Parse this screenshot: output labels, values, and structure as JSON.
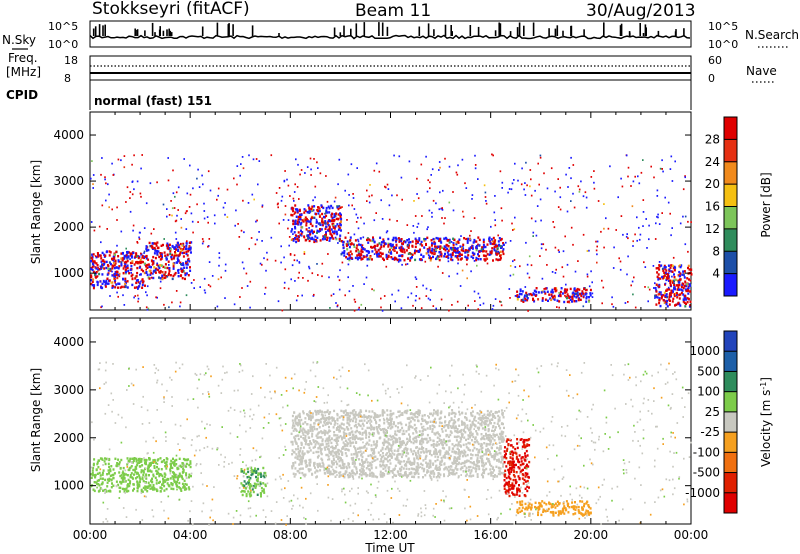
{
  "header": {
    "station": "Stokkseyri (fitACF)",
    "beam": "Beam 11",
    "date": "30/Aug/2013"
  },
  "noise_panel": {
    "left_label": "N.Sky",
    "left_ticks": [
      "10^5",
      "10^0"
    ],
    "right_ticks": [
      "10^5",
      "10^0"
    ],
    "right_label": "N.Search"
  },
  "freq_panel": {
    "left_label_1": "Freq.",
    "left_label_2": "[MHz]",
    "left_ticks": [
      "18",
      "8"
    ],
    "right_ticks": [
      "60",
      "0"
    ],
    "right_label": "Nave"
  },
  "cpid_panel": {
    "label": "CPID",
    "value": "normal (fast) 151"
  },
  "chart_data": [
    {
      "type": "heatmap",
      "title": "",
      "xlabel": "Time UT",
      "ylabel": "Slant Range [km]",
      "xlim": [
        0,
        24
      ],
      "ylim": [
        200,
        4500
      ],
      "x_ticks": [
        "00:00",
        "04:00",
        "08:00",
        "12:00",
        "16:00",
        "20:00",
        "00:00"
      ],
      "y_ticks": [
        1000,
        2000,
        3000,
        4000
      ],
      "colorbar_label": "Power [dB]",
      "colorbar_ticks": [
        4,
        8,
        12,
        16,
        20,
        24,
        28
      ],
      "colorbar_range": [
        0,
        30
      ],
      "colors": [
        "#1a1aff",
        "#1d4fa8",
        "#2f8c5c",
        "#7dc55a",
        "#f5c012",
        "#f18a1c",
        "#e63012",
        "#e00000"
      ],
      "features": [
        {
          "t0": 0.0,
          "t1": 2.2,
          "r0": 700,
          "r1": 1500,
          "value": 20
        },
        {
          "t0": 2.2,
          "t1": 4.0,
          "r0": 900,
          "r1": 1700,
          "value": 24
        },
        {
          "t0": 8.0,
          "t1": 10.0,
          "r0": 1700,
          "r1": 2500,
          "value": 14
        },
        {
          "t0": 10.0,
          "t1": 16.5,
          "r0": 1300,
          "r1": 1800,
          "value": 16
        },
        {
          "t0": 17.0,
          "t1": 20.0,
          "r0": 400,
          "r1": 700,
          "value": 22
        },
        {
          "t0": 22.5,
          "t1": 24.0,
          "r0": 300,
          "r1": 1200,
          "value": 24
        }
      ]
    },
    {
      "type": "heatmap",
      "title": "",
      "xlabel": "Time UT",
      "ylabel": "Slant Range [km]",
      "xlim": [
        0,
        24
      ],
      "ylim": [
        200,
        4500
      ],
      "x_ticks": [
        "00:00",
        "04:00",
        "08:00",
        "12:00",
        "16:00",
        "20:00",
        "00:00"
      ],
      "y_ticks": [
        1000,
        2000,
        3000,
        4000
      ],
      "colorbar_label": "Velocity [m s",
      "colorbar_label_sup": "-1",
      "colorbar_label_end": "]",
      "colorbar_ticks": [
        1000,
        500,
        100,
        25,
        -25,
        -100,
        -500,
        -1000
      ],
      "colorbar_range": [
        -1000,
        1000
      ],
      "colors": [
        "#2244bb",
        "#1d5fa8",
        "#2e8c5c",
        "#7dcc4a",
        "#c8c8c0",
        "#f5a020",
        "#f07010",
        "#e02000",
        "#e00000"
      ],
      "features": [
        {
          "t0": 8.0,
          "t1": 16.5,
          "r0": 1200,
          "r1": 2600,
          "value": 0
        },
        {
          "t0": 0.0,
          "t1": 4.0,
          "r0": 900,
          "r1": 1600,
          "value": 200
        },
        {
          "t0": 6.0,
          "t1": 7.0,
          "r0": 800,
          "r1": 1400,
          "value": 300
        },
        {
          "t0": 17.0,
          "t1": 20.0,
          "r0": 400,
          "r1": 700,
          "value": -200
        },
        {
          "t0": 16.5,
          "t1": 17.5,
          "r0": 800,
          "r1": 2000,
          "value": -800
        }
      ]
    }
  ]
}
